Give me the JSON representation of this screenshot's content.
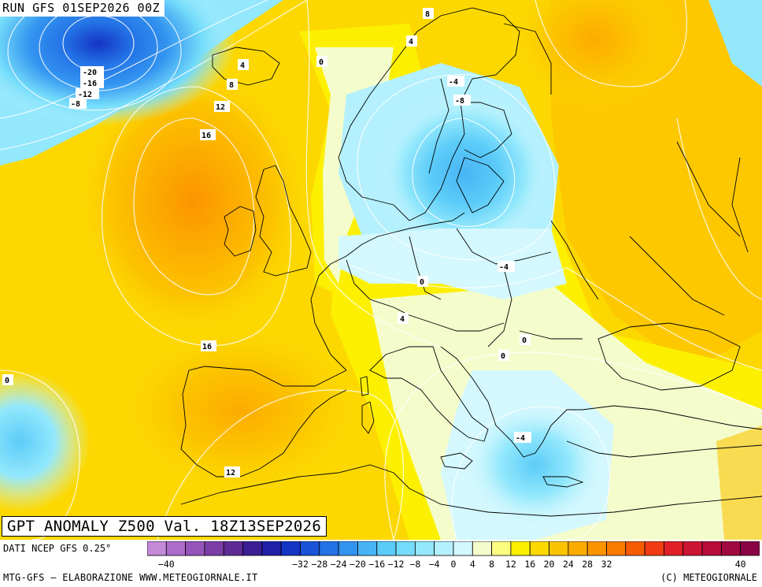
{
  "run_label": "RUN GFS 01SEP2026 00Z",
  "title": "GPT ANOMALY Z500 Val. 18Z13SEP2026",
  "source": "DATI NCEP GFS 0.25°",
  "footer_left": "MTG-GFS – ELABORAZIONE WWW.METEOGIORNALE.IT",
  "footer_right": "(C) METEOGIORNALE",
  "scale": {
    "colors": [
      "#c48ad8",
      "#ad6cc9",
      "#9554ba",
      "#7c3fa8",
      "#5e2b96",
      "#3b1e94",
      "#1f1fa8",
      "#1434c4",
      "#1a52d8",
      "#2372e6",
      "#3394f0",
      "#48b4f6",
      "#5cccf8",
      "#74dcfa",
      "#93e8fc",
      "#b4f0fd",
      "#d4f8fe",
      "#f4fccc",
      "#fcfc80",
      "#fcf000",
      "#fcd800",
      "#fcc400",
      "#fcac00",
      "#fc9400",
      "#fc7c00",
      "#f85c00",
      "#f03c14",
      "#e02028",
      "#cc1434",
      "#b80c3c",
      "#a00840",
      "#880444"
    ],
    "tick_values": [
      "-40",
      "-32",
      "-28",
      "-24",
      "-20",
      "-16",
      "-12",
      "-8",
      "-4",
      "0",
      "4",
      "8",
      "12",
      "16",
      "20",
      "24",
      "28",
      "32",
      "40"
    ]
  },
  "contour_labels": [
    {
      "text": "-20"
    },
    {
      "text": "-16"
    },
    {
      "text": "-12"
    },
    {
      "text": "-8"
    },
    {
      "text": "4"
    },
    {
      "text": "8"
    },
    {
      "text": "12"
    },
    {
      "text": "16"
    },
    {
      "text": "0"
    },
    {
      "text": "8"
    },
    {
      "text": "4"
    },
    {
      "text": "-4"
    },
    {
      "text": "-8"
    },
    {
      "text": "-4"
    },
    {
      "text": "0"
    },
    {
      "text": "4"
    },
    {
      "text": "0"
    },
    {
      "text": "0"
    },
    {
      "text": "16"
    },
    {
      "text": "0"
    },
    {
      "text": "-4"
    },
    {
      "text": "12"
    }
  ]
}
